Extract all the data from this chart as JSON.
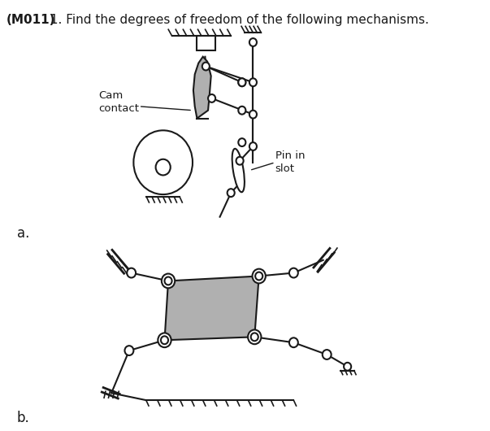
{
  "title_bold": "(M011)",
  "title_rest": " 1. Find the degrees of freedom of the following mechanisms.",
  "bg_color": "#ffffff",
  "lc": "#1a1a1a",
  "gray_fill": "#b0b0b0",
  "label_a": "a.",
  "label_b": "b.",
  "cam_label": "Cam\ncontact",
  "pin_label": "Pin in\nslot"
}
